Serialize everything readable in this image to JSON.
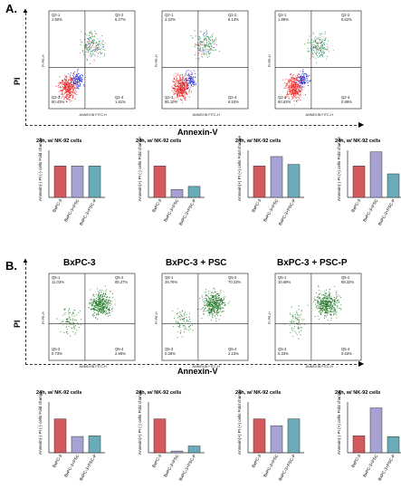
{
  "panels": {
    "A": {
      "label": "A.",
      "y_axis_label": "PI",
      "x_axis_label": "Annexin-V",
      "flow_plots": [
        {
          "quadrants": {
            "q1": {
              "name": "Q2-1",
              "value": "1.50%"
            },
            "q2": {
              "name": "Q2-2",
              "value": "6.27%"
            },
            "q3": {
              "name": "Q2-3",
              "value": "90.43%"
            },
            "q4": {
              "name": "Q2-4",
              "value": "1.81%"
            }
          }
        },
        {
          "quadrants": {
            "q1": {
              "name": "Q2-1",
              "value": "2.22%"
            },
            "q2": {
              "name": "Q2-2",
              "value": "6.14%"
            },
            "q3": {
              "name": "Q2-3",
              "value": "85.10%"
            },
            "q4": {
              "name": "Q2-4",
              "value": "6.53%"
            }
          }
        },
        {
          "quadrants": {
            "q1": {
              "name": "Q2-1",
              "value": "1.88%"
            },
            "q2": {
              "name": "Q2-2",
              "value": "6.62%"
            },
            "q3": {
              "name": "Q2-3",
              "value": "90.63%"
            },
            "q4": {
              "name": "Q2-4",
              "value": "0.88%"
            }
          }
        }
      ],
      "flow_axis": {
        "x_label": "ANNEXIN FITC-H",
        "y_label": "PI PE-H"
      }
    },
    "B": {
      "label": "B.",
      "y_axis_label": "PI",
      "x_axis_label": "Annexin-V",
      "flow_titles": [
        "BxPC-3",
        "BxPC-3 + PSC",
        "BxPC-3 + PSC-P"
      ],
      "flow_plots": [
        {
          "quadrants": {
            "q1": {
              "name": "Q5-1",
              "value": "11.03%"
            },
            "q2": {
              "name": "Q5-2",
              "value": "85.27%"
            },
            "q3": {
              "name": "Q5-3",
              "value": "0.73%"
            },
            "q4": {
              "name": "Q5-4",
              "value": "2.96%"
            }
          }
        },
        {
          "quadrants": {
            "q1": {
              "name": "Q5-1",
              "value": "26.76%"
            },
            "q2": {
              "name": "Q5-2",
              "value": "70.23%"
            },
            "q3": {
              "name": "Q5-3",
              "value": "0.36%"
            },
            "q4": {
              "name": "Q5-4",
              "value": "2.23%"
            }
          }
        },
        {
          "quadrants": {
            "q1": {
              "name": "Q5-1",
              "value": "10.69%"
            },
            "q2": {
              "name": "Q5-2",
              "value": "88.32%"
            },
            "q3": {
              "name": "Q5-3",
              "value": "0.33%"
            },
            "q4": {
              "name": "Q5-4",
              "value": "0.63%"
            }
          }
        }
      ],
      "flow_axis": {
        "x_label": "ANNEXIN FITC-H",
        "y_label": "PI PE-H"
      }
    }
  },
  "chart_data": [
    {
      "type": "bar",
      "title": "24h, w/ NK-92 cells",
      "ylabel": "Annexin(-) PI (-) cells Fold change",
      "categories": [
        "BxPC-3",
        "BxPC-3+PSC",
        "BxPC-3+PSC-P"
      ],
      "values": [
        1.0,
        1.0,
        1.0
      ],
      "colors": [
        "#d2595c",
        "#a6a3d4",
        "#6aabb8"
      ],
      "ylim": [
        0,
        1.5
      ]
    },
    {
      "type": "bar",
      "title": "24h, w/ NK-92 cells",
      "ylabel": "Annexin(+) PI (-) cells Fold change",
      "categories": [
        "BxPC-3",
        "BxPC-3+PSC",
        "BxPC-3+PSC-P"
      ],
      "values": [
        1.0,
        0.25,
        0.35
      ],
      "colors": [
        "#d2595c",
        "#a6a3d4",
        "#6aabb8"
      ],
      "ylim": [
        0,
        1.5
      ]
    },
    {
      "type": "bar",
      "title": "24h, w/ NK-92 cells",
      "ylabel": "Annexin(+) PI (+) cells Fold change",
      "categories": [
        "BxPC-3",
        "BxPC-3+PSC",
        "BxPC-3+PSC-P"
      ],
      "values": [
        1.0,
        1.3,
        1.05
      ],
      "colors": [
        "#d2595c",
        "#a6a3d4",
        "#6aabb8"
      ],
      "ylim": [
        0,
        1.5
      ]
    },
    {
      "type": "bar",
      "title": "24h, w/ NK-92 cells",
      "ylabel": "Annexin(-) PI (+) cells Fold change",
      "categories": [
        "BxPC-3",
        "BxPC-3+PSC",
        "BxPC-3+PSC-P"
      ],
      "values": [
        1.0,
        1.45,
        0.75
      ],
      "colors": [
        "#d2595c",
        "#a6a3d4",
        "#6aabb8"
      ],
      "ylim": [
        0,
        1.5
      ]
    },
    {
      "type": "bar",
      "title": "24h, w/ NK-92 cells",
      "ylabel": "Annexin(-) PI (-) cells Fold change",
      "categories": [
        "BxPC-3",
        "BxPC-3+PSC",
        "BxPC-3+PSC-P"
      ],
      "values": [
        1.0,
        0.48,
        0.5
      ],
      "colors": [
        "#d2595c",
        "#a6a3d4",
        "#6aabb8"
      ],
      "ylim": [
        0,
        1.5
      ]
    },
    {
      "type": "bar",
      "title": "24h, w/ NK-92 cells",
      "ylabel": "Annexin(+) PI (-) cells Fold change",
      "categories": [
        "BxPC-3",
        "BxPC-3+PSC",
        "BxPC-3+PSC-P"
      ],
      "values": [
        1.0,
        0.05,
        0.2
      ],
      "colors": [
        "#d2595c",
        "#a6a3d4",
        "#6aabb8"
      ],
      "ylim": [
        0,
        1.5
      ]
    },
    {
      "type": "bar",
      "title": "24h, w/ NK-92 cells",
      "ylabel": "Annexin(+) PI (+) cells Fold change",
      "categories": [
        "BxPC-3",
        "BxPC-3+PSC",
        "BxPC-3+PSC-P"
      ],
      "values": [
        1.0,
        0.8,
        1.0
      ],
      "colors": [
        "#d2595c",
        "#a6a3d4",
        "#6aabb8"
      ],
      "ylim": [
        0,
        1.5
      ]
    },
    {
      "type": "bar",
      "title": "24h, w/ NK-92 cells",
      "ylabel": "Annexin(-) PI (+) cells Fold change",
      "categories": [
        "BxPC-3",
        "BxPC-3+PSC",
        "BxPC-3+PSC-P"
      ],
      "values": [
        1.0,
        2.65,
        0.95
      ],
      "colors": [
        "#d2595c",
        "#a6a3d4",
        "#6aabb8"
      ],
      "ylim": [
        0,
        3
      ]
    }
  ]
}
